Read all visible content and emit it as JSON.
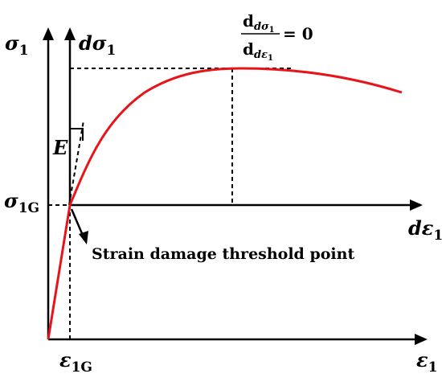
{
  "labels": {
    "sigma1": "σ",
    "sigma1_sub": "1",
    "dsigma1": "dσ",
    "dsigma1_sub": "1",
    "sigma1G": "σ",
    "sigma1G_sub": "1G",
    "depsilon1": "dε",
    "depsilon1_sub": "1",
    "epsilon1": "ε",
    "epsilon1_sub": "1",
    "epsilon1G": "ε",
    "epsilon1G_sub": "1G",
    "E": "E",
    "threshold": "Strain damage threshold point"
  },
  "formula": {
    "num_d": "d",
    "num_sub": "dσ",
    "num_sub2": "1",
    "den_d": "d",
    "den_sub": "dε",
    "den_sub2": "1",
    "rhs": "= 0"
  },
  "colors": {
    "curve": "#e8141b",
    "axes": "#000000"
  }
}
